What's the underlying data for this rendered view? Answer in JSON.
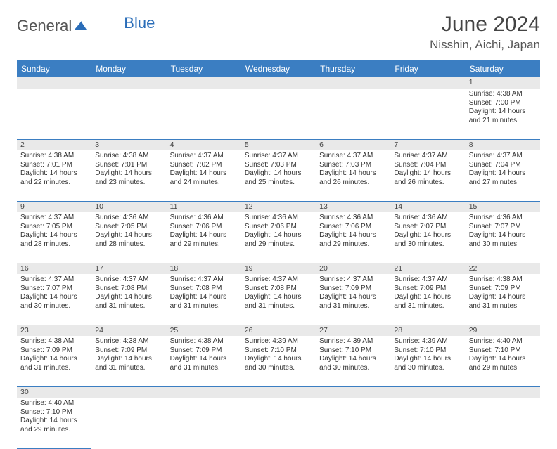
{
  "logo": {
    "general": "General",
    "blue": "Blue"
  },
  "title": "June 2024",
  "location": "Nisshin, Aichi, Japan",
  "colors": {
    "header_bg": "#3b7ec2",
    "header_text": "#ffffff",
    "daynum_bg": "#e9e9e9",
    "border": "#3b7ec2",
    "text": "#333333"
  },
  "weekdays": [
    "Sunday",
    "Monday",
    "Tuesday",
    "Wednesday",
    "Thursday",
    "Friday",
    "Saturday"
  ],
  "weeks": [
    [
      null,
      null,
      null,
      null,
      null,
      null,
      {
        "n": "1",
        "sr": "Sunrise: 4:38 AM",
        "ss": "Sunset: 7:00 PM",
        "d1": "Daylight: 14 hours",
        "d2": "and 21 minutes."
      }
    ],
    [
      {
        "n": "2",
        "sr": "Sunrise: 4:38 AM",
        "ss": "Sunset: 7:01 PM",
        "d1": "Daylight: 14 hours",
        "d2": "and 22 minutes."
      },
      {
        "n": "3",
        "sr": "Sunrise: 4:38 AM",
        "ss": "Sunset: 7:01 PM",
        "d1": "Daylight: 14 hours",
        "d2": "and 23 minutes."
      },
      {
        "n": "4",
        "sr": "Sunrise: 4:37 AM",
        "ss": "Sunset: 7:02 PM",
        "d1": "Daylight: 14 hours",
        "d2": "and 24 minutes."
      },
      {
        "n": "5",
        "sr": "Sunrise: 4:37 AM",
        "ss": "Sunset: 7:03 PM",
        "d1": "Daylight: 14 hours",
        "d2": "and 25 minutes."
      },
      {
        "n": "6",
        "sr": "Sunrise: 4:37 AM",
        "ss": "Sunset: 7:03 PM",
        "d1": "Daylight: 14 hours",
        "d2": "and 26 minutes."
      },
      {
        "n": "7",
        "sr": "Sunrise: 4:37 AM",
        "ss": "Sunset: 7:04 PM",
        "d1": "Daylight: 14 hours",
        "d2": "and 26 minutes."
      },
      {
        "n": "8",
        "sr": "Sunrise: 4:37 AM",
        "ss": "Sunset: 7:04 PM",
        "d1": "Daylight: 14 hours",
        "d2": "and 27 minutes."
      }
    ],
    [
      {
        "n": "9",
        "sr": "Sunrise: 4:37 AM",
        "ss": "Sunset: 7:05 PM",
        "d1": "Daylight: 14 hours",
        "d2": "and 28 minutes."
      },
      {
        "n": "10",
        "sr": "Sunrise: 4:36 AM",
        "ss": "Sunset: 7:05 PM",
        "d1": "Daylight: 14 hours",
        "d2": "and 28 minutes."
      },
      {
        "n": "11",
        "sr": "Sunrise: 4:36 AM",
        "ss": "Sunset: 7:06 PM",
        "d1": "Daylight: 14 hours",
        "d2": "and 29 minutes."
      },
      {
        "n": "12",
        "sr": "Sunrise: 4:36 AM",
        "ss": "Sunset: 7:06 PM",
        "d1": "Daylight: 14 hours",
        "d2": "and 29 minutes."
      },
      {
        "n": "13",
        "sr": "Sunrise: 4:36 AM",
        "ss": "Sunset: 7:06 PM",
        "d1": "Daylight: 14 hours",
        "d2": "and 29 minutes."
      },
      {
        "n": "14",
        "sr": "Sunrise: 4:36 AM",
        "ss": "Sunset: 7:07 PM",
        "d1": "Daylight: 14 hours",
        "d2": "and 30 minutes."
      },
      {
        "n": "15",
        "sr": "Sunrise: 4:36 AM",
        "ss": "Sunset: 7:07 PM",
        "d1": "Daylight: 14 hours",
        "d2": "and 30 minutes."
      }
    ],
    [
      {
        "n": "16",
        "sr": "Sunrise: 4:37 AM",
        "ss": "Sunset: 7:07 PM",
        "d1": "Daylight: 14 hours",
        "d2": "and 30 minutes."
      },
      {
        "n": "17",
        "sr": "Sunrise: 4:37 AM",
        "ss": "Sunset: 7:08 PM",
        "d1": "Daylight: 14 hours",
        "d2": "and 31 minutes."
      },
      {
        "n": "18",
        "sr": "Sunrise: 4:37 AM",
        "ss": "Sunset: 7:08 PM",
        "d1": "Daylight: 14 hours",
        "d2": "and 31 minutes."
      },
      {
        "n": "19",
        "sr": "Sunrise: 4:37 AM",
        "ss": "Sunset: 7:08 PM",
        "d1": "Daylight: 14 hours",
        "d2": "and 31 minutes."
      },
      {
        "n": "20",
        "sr": "Sunrise: 4:37 AM",
        "ss": "Sunset: 7:09 PM",
        "d1": "Daylight: 14 hours",
        "d2": "and 31 minutes."
      },
      {
        "n": "21",
        "sr": "Sunrise: 4:37 AM",
        "ss": "Sunset: 7:09 PM",
        "d1": "Daylight: 14 hours",
        "d2": "and 31 minutes."
      },
      {
        "n": "22",
        "sr": "Sunrise: 4:38 AM",
        "ss": "Sunset: 7:09 PM",
        "d1": "Daylight: 14 hours",
        "d2": "and 31 minutes."
      }
    ],
    [
      {
        "n": "23",
        "sr": "Sunrise: 4:38 AM",
        "ss": "Sunset: 7:09 PM",
        "d1": "Daylight: 14 hours",
        "d2": "and 31 minutes."
      },
      {
        "n": "24",
        "sr": "Sunrise: 4:38 AM",
        "ss": "Sunset: 7:09 PM",
        "d1": "Daylight: 14 hours",
        "d2": "and 31 minutes."
      },
      {
        "n": "25",
        "sr": "Sunrise: 4:38 AM",
        "ss": "Sunset: 7:09 PM",
        "d1": "Daylight: 14 hours",
        "d2": "and 31 minutes."
      },
      {
        "n": "26",
        "sr": "Sunrise: 4:39 AM",
        "ss": "Sunset: 7:10 PM",
        "d1": "Daylight: 14 hours",
        "d2": "and 30 minutes."
      },
      {
        "n": "27",
        "sr": "Sunrise: 4:39 AM",
        "ss": "Sunset: 7:10 PM",
        "d1": "Daylight: 14 hours",
        "d2": "and 30 minutes."
      },
      {
        "n": "28",
        "sr": "Sunrise: 4:39 AM",
        "ss": "Sunset: 7:10 PM",
        "d1": "Daylight: 14 hours",
        "d2": "and 30 minutes."
      },
      {
        "n": "29",
        "sr": "Sunrise: 4:40 AM",
        "ss": "Sunset: 7:10 PM",
        "d1": "Daylight: 14 hours",
        "d2": "and 29 minutes."
      }
    ],
    [
      {
        "n": "30",
        "sr": "Sunrise: 4:40 AM",
        "ss": "Sunset: 7:10 PM",
        "d1": "Daylight: 14 hours",
        "d2": "and 29 minutes."
      },
      null,
      null,
      null,
      null,
      null,
      null
    ]
  ]
}
